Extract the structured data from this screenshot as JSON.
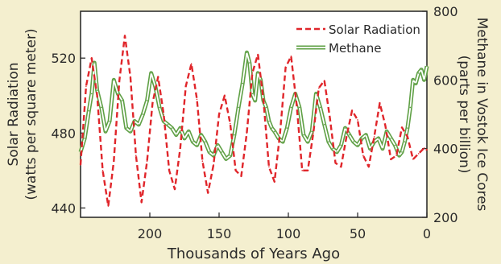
{
  "chart_data": {
    "type": "line",
    "xlabel": "Thousands of Years Ago",
    "ylabel_left": "Solar Radiation (watts per square meter)",
    "ylabel_left_lines": [
      "Solar Radiation",
      "(watts per square meter)"
    ],
    "ylabel_right": "Methane in Vostok Ice Cores (parts per billion)",
    "ylabel_right_lines": [
      "Methane in Vostok Ice Cores",
      "(parts per billion)"
    ],
    "xlim": [
      250,
      0
    ],
    "x_ticks": [
      200,
      150,
      100,
      50,
      0
    ],
    "ylim_left": [
      435,
      545
    ],
    "y_ticks_left": [
      440,
      480,
      520
    ],
    "ylim_right": [
      200,
      800
    ],
    "y_ticks_right": [
      200,
      400,
      600,
      800
    ],
    "legend_position": "top-right",
    "grid": false,
    "series": [
      {
        "name": "Solar Radiation",
        "axis": "left",
        "color": "#e0262b",
        "style": "dashed",
        "x": [
          250,
          246,
          242,
          238,
          234,
          230,
          226,
          222,
          218,
          214,
          210,
          206,
          202,
          198,
          194,
          190,
          186,
          182,
          178,
          174,
          170,
          166,
          162,
          158,
          154,
          150,
          146,
          142,
          138,
          134,
          130,
          126,
          122,
          118,
          114,
          110,
          106,
          102,
          98,
          94,
          90,
          86,
          82,
          78,
          74,
          70,
          66,
          62,
          58,
          54,
          50,
          46,
          42,
          38,
          34,
          30,
          26,
          22,
          18,
          14,
          10,
          6,
          2,
          0
        ],
        "values": [
          463,
          505,
          520,
          500,
          460,
          441,
          465,
          508,
          532,
          510,
          468,
          443,
          465,
          496,
          510,
          490,
          460,
          450,
          472,
          505,
          517,
          498,
          465,
          448,
          463,
          490,
          500,
          485,
          460,
          457,
          480,
          512,
          522,
          498,
          462,
          454,
          480,
          515,
          521,
          495,
          460,
          460,
          480,
          504,
          508,
          488,
          464,
          462,
          478,
          492,
          487,
          468,
          462,
          478,
          496,
          484,
          466,
          468,
          483,
          478,
          466,
          469,
          472,
          471
        ]
      },
      {
        "name": "Methane",
        "axis": "right",
        "color": "#5fa045",
        "style": "double",
        "x": [
          250,
          247,
          244,
          242,
          240,
          238,
          235,
          232,
          229,
          226,
          223,
          220,
          217,
          214,
          211,
          208,
          205,
          202,
          199,
          196,
          193,
          190,
          187,
          184,
          181,
          178,
          175,
          172,
          169,
          166,
          163,
          160,
          157,
          154,
          151,
          148,
          145,
          142,
          139,
          136,
          133,
          130,
          128,
          126,
          124,
          122,
          120,
          118,
          116,
          114,
          112,
          110,
          107,
          104,
          101,
          98,
          95,
          92,
          89,
          86,
          83,
          80,
          77,
          74,
          71,
          68,
          65,
          62,
          59,
          56,
          53,
          50,
          47,
          44,
          41,
          38,
          35,
          32,
          29,
          26,
          23,
          20,
          18,
          16,
          14,
          12,
          10,
          8,
          6,
          4,
          2,
          0
        ],
        "values": [
          390,
          430,
          510,
          560,
          650,
          570,
          520,
          450,
          480,
          600,
          560,
          540,
          460,
          450,
          480,
          470,
          500,
          540,
          620,
          580,
          520,
          480,
          470,
          460,
          440,
          460,
          430,
          450,
          420,
          410,
          440,
          420,
          390,
          380,
          410,
          390,
          370,
          380,
          440,
          520,
          590,
          680,
          650,
          560,
          540,
          620,
          600,
          540,
          520,
          480,
          460,
          450,
          430,
          420,
          460,
          520,
          560,
          520,
          440,
          420,
          450,
          560,
          520,
          470,
          420,
          400,
          390,
          410,
          460,
          440,
          420,
          410,
          430,
          440,
          400,
          420,
          430,
          400,
          450,
          430,
          410,
          380,
          390,
          420,
          460,
          520,
          600,
          590,
          620,
          630,
          600,
          640
        ]
      }
    ]
  }
}
